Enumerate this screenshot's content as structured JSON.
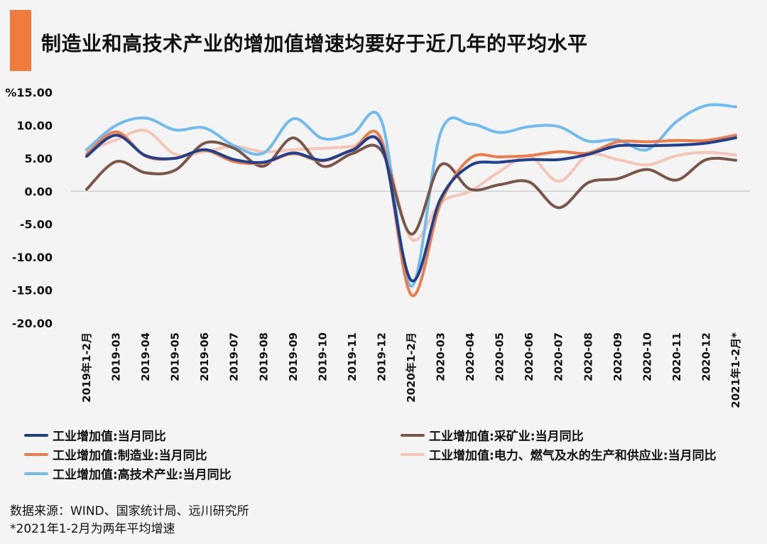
{
  "title": "制造业和高技术产业的增加值增速均要好于近几年的平均水平",
  "footer": {
    "source": "数据来源：WIND、国家统计局、远川研究所",
    "note": "*2021年1-2月为两年平均增速"
  },
  "chart_data": {
    "type": "line",
    "yunit": "%",
    "ylim": [
      -20,
      15
    ],
    "yticks": [
      "15.00",
      "10.00",
      "5.00",
      "0.00",
      "-5.00",
      "-10.00",
      "-15.00",
      "-20.00"
    ],
    "ytick_values": [
      15,
      10,
      5,
      0,
      -5,
      -10,
      -15,
      -20
    ],
    "categories": [
      "2019年1-2月",
      "2019-03",
      "2019-04",
      "2019-05",
      "2019-06",
      "2019-07",
      "2019-08",
      "2019-09",
      "2019-10",
      "2019-11",
      "2019-12",
      "2020年1-2月",
      "2020-03",
      "2020-04",
      "2020-05",
      "2020-06",
      "2020-07",
      "2020-08",
      "2020-09",
      "2020-10",
      "2020-11",
      "2020-12",
      "2021年1-2月*"
    ],
    "series": [
      {
        "name": "工业增加值:当月同比",
        "color": "#1f3f8f",
        "values": [
          5.3,
          8.5,
          5.4,
          5.0,
          6.3,
          4.8,
          4.4,
          5.8,
          4.7,
          6.2,
          6.9,
          -13.5,
          -1.1,
          3.9,
          4.4,
          4.8,
          4.8,
          5.6,
          6.9,
          6.9,
          7.0,
          7.3,
          8.1
        ]
      },
      {
        "name": "工业增加值:采矿业:当月同比",
        "color": "#7a5648",
        "values": [
          0.3,
          4.5,
          2.8,
          3.2,
          7.3,
          6.5,
          3.8,
          8.1,
          3.8,
          5.7,
          6.1,
          -6.5,
          4.0,
          0.3,
          1.0,
          1.4,
          -2.5,
          1.3,
          1.9,
          3.3,
          1.7,
          4.8,
          4.7
        ]
      },
      {
        "name": "工业增加值:制造业:当月同比",
        "color": "#ed7d48",
        "values": [
          5.6,
          9.0,
          5.3,
          5.0,
          6.2,
          4.5,
          4.3,
          5.7,
          4.6,
          6.3,
          7.7,
          -15.7,
          -1.8,
          5.0,
          5.2,
          5.4,
          6.0,
          5.8,
          7.5,
          7.5,
          7.7,
          7.7,
          8.5
        ]
      },
      {
        "name": "工业增加值:电力、燃气及水的生产和供应业:当月同比",
        "color": "#f5c5b5",
        "values": [
          6.0,
          7.8,
          9.2,
          5.6,
          6.0,
          6.8,
          6.0,
          6.3,
          6.5,
          6.8,
          7.5,
          -7.2,
          -1.7,
          0.0,
          3.0,
          5.3,
          1.5,
          5.5,
          4.8,
          4.0,
          5.4,
          5.9,
          5.5
        ]
      },
      {
        "name": "工业增加值:高技术产业:当月同比",
        "color": "#6fbdf0",
        "values": [
          6.3,
          10.0,
          11.1,
          9.3,
          9.6,
          6.9,
          5.8,
          11.0,
          8.0,
          8.7,
          10.6,
          -14.4,
          8.9,
          10.2,
          8.9,
          9.8,
          9.8,
          7.6,
          7.8,
          6.3,
          10.6,
          13.0,
          12.8
        ]
      }
    ]
  }
}
